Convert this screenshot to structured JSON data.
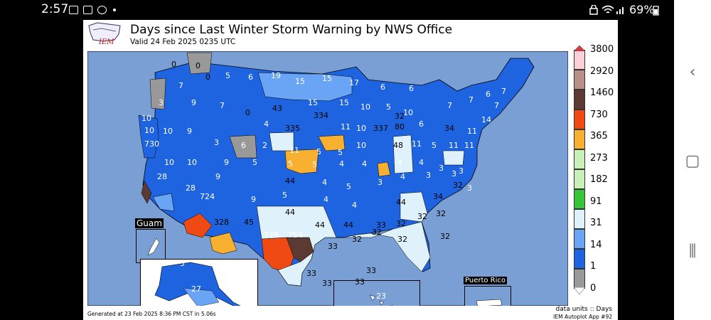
{
  "status_bar": {
    "time": "2:57",
    "battery": "69%"
  },
  "map": {
    "title": "Days since Last Winter Storm Warning by NWS Office",
    "subtitle": "Valid 24 Feb 2025 0235 UTC",
    "logo_text": "IEM",
    "footer_generated": "Generated at 23 Feb 2025 8:36 PM CST in 5.06s",
    "footer_units": "data units :: Days",
    "footer_app": "IEM Autoplot App #92",
    "inset_labels": {
      "guam": "Guam",
      "puerto_rico": "Puerto Rico"
    },
    "colors": {
      "ocean": "#7a9fd4",
      "land_0": "#999999",
      "land_1": "#1e64e0",
      "land_14": "#6aa4f4",
      "land_31": "#dff2fc",
      "land_91": "#35c43a",
      "land_182": "#c8f0b8",
      "land_273": "#f8b030",
      "land_365": "#f04a14",
      "land_730": "#5a3a32",
      "land_1460": "#b89088",
      "land_2920": "#fdd0d8",
      "land_3800": "#d83a4a",
      "offgrid": "#ffffff"
    },
    "colorbar": {
      "ticks": [
        "3800",
        "2920",
        "1460",
        "730",
        "365",
        "273",
        "182",
        "91",
        "31",
        "14",
        "1",
        "0"
      ],
      "colors": [
        "#fdd0d8",
        "#b89088",
        "#5a3a32",
        "#f04a14",
        "#f8b030",
        "#c8f0b8",
        "#c8f0b8",
        "#35c43a",
        "#dff2fc",
        "#6aa4f4",
        "#1e64e0",
        "#999999"
      ]
    },
    "values": [
      {
        "v": "0"
      },
      {
        "v": "0"
      },
      {
        "v": "0"
      },
      {
        "v": "7"
      },
      {
        "v": "5"
      },
      {
        "v": "6"
      },
      {
        "v": "19"
      },
      {
        "v": "15"
      },
      {
        "v": "15"
      },
      {
        "v": "17"
      },
      {
        "v": "6"
      },
      {
        "v": "6"
      },
      {
        "v": "3"
      },
      {
        "v": "9"
      },
      {
        "v": "7"
      },
      {
        "v": "0"
      },
      {
        "v": "43"
      },
      {
        "v": "15"
      },
      {
        "v": "15"
      },
      {
        "v": "10"
      },
      {
        "v": "5"
      },
      {
        "v": "10"
      },
      {
        "v": "7"
      },
      {
        "v": "7"
      },
      {
        "v": "6"
      },
      {
        "v": "7"
      },
      {
        "v": "10"
      },
      {
        "v": "4"
      },
      {
        "v": "335"
      },
      {
        "v": "334"
      },
      {
        "v": "11"
      },
      {
        "v": "10"
      },
      {
        "v": "337"
      },
      {
        "v": "80"
      },
      {
        "v": "32"
      },
      {
        "v": "6"
      },
      {
        "v": "34"
      },
      {
        "v": "11"
      },
      {
        "v": "14"
      },
      {
        "v": "7"
      },
      {
        "v": "10"
      },
      {
        "v": "10"
      },
      {
        "v": "9"
      },
      {
        "v": "3"
      },
      {
        "v": "6"
      },
      {
        "v": "2"
      },
      {
        "v": "11"
      },
      {
        "v": "5"
      },
      {
        "v": "5"
      },
      {
        "v": "10"
      },
      {
        "v": "48"
      },
      {
        "v": "11"
      },
      {
        "v": "5"
      },
      {
        "v": "11"
      },
      {
        "v": "11"
      },
      {
        "v": "730"
      },
      {
        "v": "10"
      },
      {
        "v": "10"
      },
      {
        "v": "9"
      },
      {
        "v": "5"
      },
      {
        "v": "5"
      },
      {
        "v": "5"
      },
      {
        "v": "4"
      },
      {
        "v": "4"
      },
      {
        "v": "4"
      },
      {
        "v": "4"
      },
      {
        "v": "3"
      },
      {
        "v": "3"
      },
      {
        "v": "28"
      },
      {
        "v": "9"
      },
      {
        "v": "44"
      },
      {
        "v": "5"
      },
      {
        "v": "4"
      },
      {
        "v": "5"
      },
      {
        "v": "3"
      },
      {
        "v": "4"
      },
      {
        "v": "3"
      },
      {
        "v": "3"
      },
      {
        "v": "3"
      },
      {
        "v": "28"
      },
      {
        "v": "724"
      },
      {
        "v": "9"
      },
      {
        "v": "44"
      },
      {
        "v": "4"
      },
      {
        "v": "4"
      },
      {
        "v": "44"
      },
      {
        "v": "34"
      },
      {
        "v": "32"
      },
      {
        "v": "328"
      },
      {
        "v": "45"
      },
      {
        "v": "44"
      },
      {
        "v": "44"
      },
      {
        "v": "33"
      },
      {
        "v": "32"
      },
      {
        "v": "32"
      },
      {
        "v": "32"
      },
      {
        "v": "378"
      },
      {
        "v": "754"
      },
      {
        "v": "33"
      },
      {
        "v": "32"
      },
      {
        "v": "32"
      },
      {
        "v": "32"
      },
      {
        "v": "33"
      },
      {
        "v": "33"
      },
      {
        "v": "33"
      },
      {
        "v": "33"
      },
      {
        "v": "32"
      },
      {
        "v": "5"
      },
      {
        "v": "27"
      },
      {
        "v": "23"
      }
    ]
  }
}
